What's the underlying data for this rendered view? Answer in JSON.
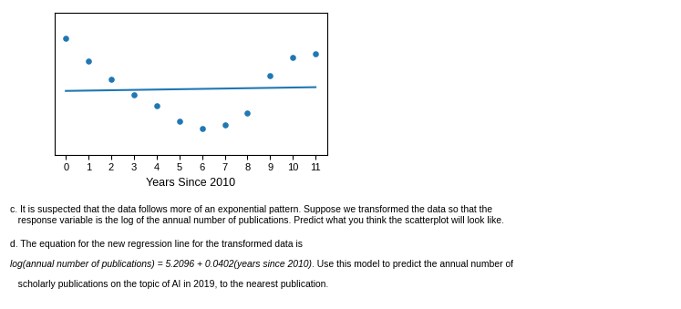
{
  "chart_data": {
    "type": "scatter",
    "x": [
      0,
      1,
      2,
      3,
      4,
      5,
      6,
      7,
      8,
      9,
      10,
      11
    ],
    "series": [
      {
        "type": "scatter",
        "values": [
          6.85,
          6.55,
          6.3,
          6.1,
          5.95,
          5.75,
          5.65,
          5.7,
          5.85,
          6.35,
          6.6,
          6.65
        ]
      },
      {
        "type": "line",
        "x": [
          0,
          11
        ],
        "values": [
          6.15,
          6.2
        ]
      }
    ],
    "x_label": "Years Since 2010",
    "xlim": [
      -0.5,
      11.5
    ],
    "xticks": [
      0,
      1,
      2,
      3,
      4,
      5,
      6,
      7,
      8,
      9,
      10,
      11
    ],
    "ylim": [
      5.3,
      7.2
    ],
    "tick_labels": "x",
    "annotations": [
      "c. It is suspected that the data follows more of an exponential pattern. Suppose we transformed the data so that the\n   response variable is the log of the annual number of publications. Predict what you think the scatterplot will look like.",
      "d. The equation for the new regression line for the transformed data is",
      "log(annual number of publications) = 5.2096 + 0.0402(years since 2010)",
      ". Use this model to predict the annual number of",
      "   scholarly publications on the topic of AI in 2019, to the nearest publication."
    ]
  }
}
